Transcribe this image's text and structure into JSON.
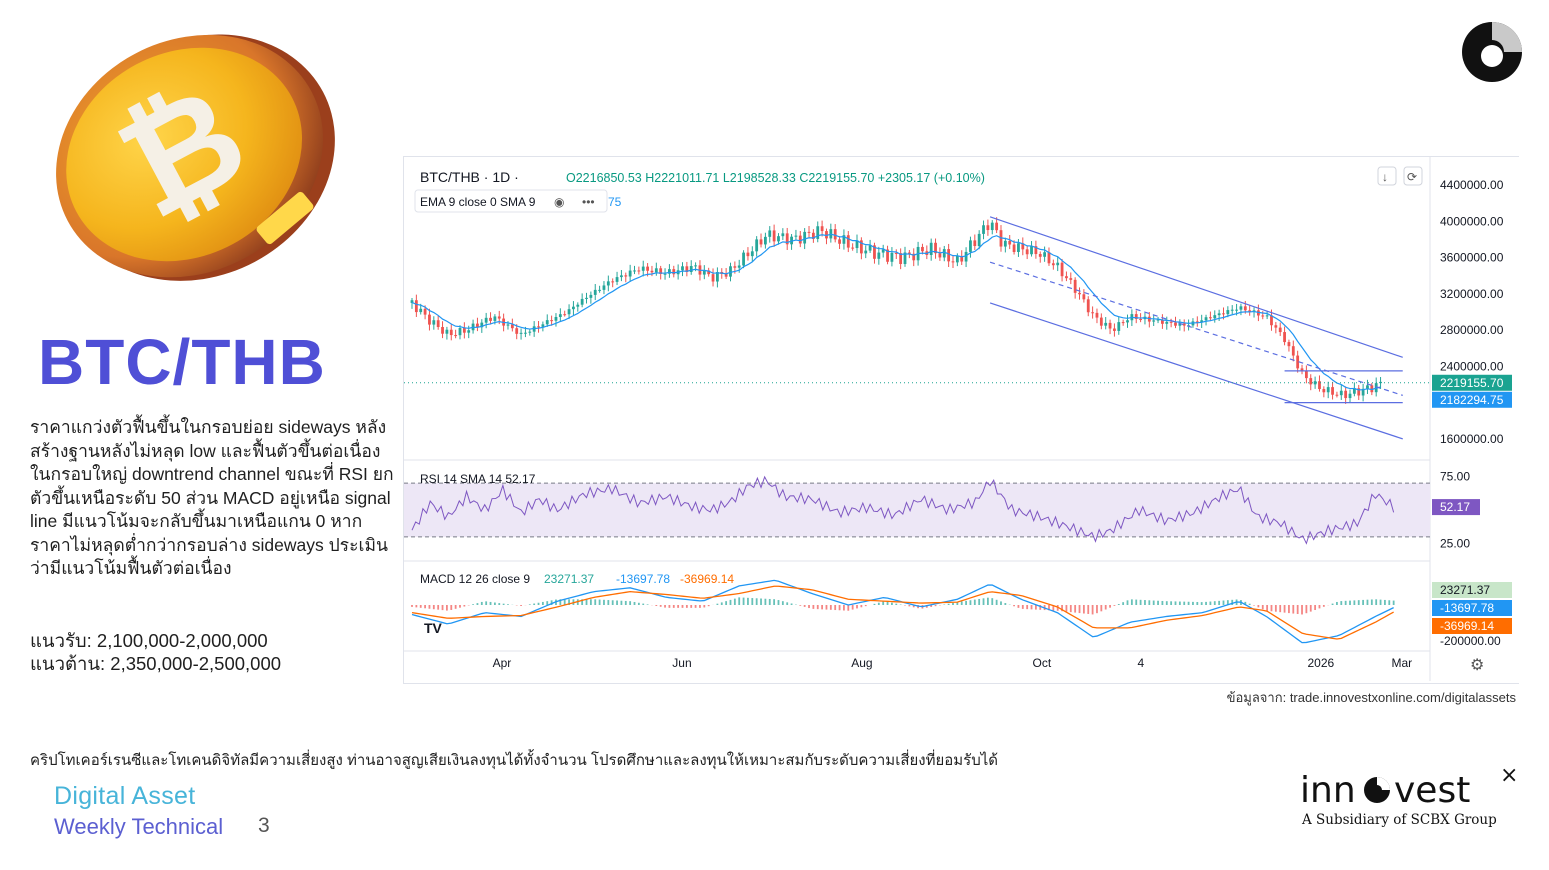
{
  "header": {
    "title": "BTC/THB"
  },
  "analysis": {
    "paragraph": "ราคาแกว่งตัวฟื้นขึ้นในกรอบย่อย sideways หลังสร้างฐานหลังไม่หลุด low และฟื้นตัวขึ้นต่อเนื่องในกรอบใหญ่ downtrend channel ขณะที่ RSI ยกตัวขึ้นเหนือระดับ 50 ส่วน MACD อยู่เหนือ signal line มีแนวโน้มจะกลับขึ้นมาเหนือแกน 0 หากราคาไม่หลุดต่ำกว่ากรอบล่าง sideways ประเมินว่ามีแนวโน้มฟื้นตัวต่อเนื่อง",
    "support": "แนวรับ: 2,100,000-2,000,000",
    "resistance": "แนวต้าน: 2,350,000-2,500,000"
  },
  "chart_header": {
    "symbol": "BTC/THB",
    "interval": "1D",
    "ohlc": "O2216850.53  H2221011.71  L2198528.33  C2219155.70  +2305.17 (+0.10%)",
    "indicator_label": "EMA 9 close 0 SMA 9",
    "indicator_value": "75",
    "more": "•••"
  },
  "chart_data": {
    "type": "candlestick",
    "symbol": "BTC/THB",
    "interval": "1D",
    "x_ticks": [
      "Apr",
      "Jun",
      "Aug",
      "Oct",
      "4",
      "2026",
      "Mar"
    ],
    "price_panel": {
      "yticks": [
        "4400000.00",
        "4000000.00",
        "3600000.00",
        "3200000.00",
        "2800000.00",
        "2400000.00",
        "1600000.00"
      ],
      "ylim": [
        1400000,
        4600000
      ],
      "last_close": {
        "label": "2219155.70",
        "value": 2219155.7,
        "color": "#1aa391"
      },
      "ema_label": {
        "label": "2182294.75",
        "value": 2182294.75,
        "color": "#2196f3"
      },
      "close_points": [
        [
          0,
          3100000
        ],
        [
          10,
          2900000
        ],
        [
          20,
          2750000
        ],
        [
          30,
          2800000
        ],
        [
          45,
          2950000
        ],
        [
          60,
          2750000
        ],
        [
          75,
          2900000
        ],
        [
          85,
          3000000
        ],
        [
          95,
          3150000
        ],
        [
          110,
          3350000
        ],
        [
          125,
          3480000
        ],
        [
          140,
          3430000
        ],
        [
          155,
          3500000
        ],
        [
          165,
          3380000
        ],
        [
          175,
          3450000
        ],
        [
          185,
          3650000
        ],
        [
          195,
          3850000
        ],
        [
          210,
          3800000
        ],
        [
          225,
          3900000
        ],
        [
          240,
          3750000
        ],
        [
          255,
          3650000
        ],
        [
          270,
          3600000
        ],
        [
          285,
          3700000
        ],
        [
          300,
          3550000
        ],
        [
          310,
          3800000
        ],
        [
          318,
          4000000
        ],
        [
          325,
          3750000
        ],
        [
          335,
          3700000
        ],
        [
          345,
          3650000
        ],
        [
          355,
          3500000
        ],
        [
          365,
          3250000
        ],
        [
          375,
          2950000
        ],
        [
          385,
          2800000
        ],
        [
          395,
          2950000
        ],
        [
          410,
          2900000
        ],
        [
          425,
          2850000
        ],
        [
          440,
          2950000
        ],
        [
          455,
          3050000
        ],
        [
          470,
          2950000
        ],
        [
          480,
          2700000
        ],
        [
          490,
          2300000
        ],
        [
          500,
          2150000
        ],
        [
          512,
          2080000
        ],
        [
          525,
          2150000
        ],
        [
          535,
          2219155.7
        ]
      ],
      "channel_upper": [
        [
          318,
          4050000
        ],
        [
          545,
          2500000
        ]
      ],
      "channel_lower": [
        [
          318,
          3100000
        ],
        [
          545,
          1600000
        ]
      ],
      "channel_mid": [
        [
          318,
          3550000
        ],
        [
          545,
          2080000
        ]
      ],
      "sideways_top": 2350000,
      "sideways_bottom": 2000000
    },
    "rsi_panel": {
      "label": "RSI 14 SMA 14",
      "value_label": "52.17",
      "value": 52.17,
      "yticks": [
        "75.00",
        "25.00"
      ],
      "upper_band": 70,
      "lower_band": 30,
      "points": [
        [
          0,
          35
        ],
        [
          10,
          55
        ],
        [
          20,
          45
        ],
        [
          30,
          60
        ],
        [
          40,
          50
        ],
        [
          50,
          65
        ],
        [
          60,
          48
        ],
        [
          70,
          58
        ],
        [
          80,
          50
        ],
        [
          95,
          62
        ],
        [
          110,
          66
        ],
        [
          125,
          55
        ],
        [
          140,
          60
        ],
        [
          155,
          52
        ],
        [
          165,
          50
        ],
        [
          175,
          56
        ],
        [
          185,
          68
        ],
        [
          195,
          72
        ],
        [
          205,
          60
        ],
        [
          220,
          58
        ],
        [
          235,
          48
        ],
        [
          250,
          52
        ],
        [
          265,
          46
        ],
        [
          280,
          58
        ],
        [
          295,
          50
        ],
        [
          310,
          56
        ],
        [
          318,
          72
        ],
        [
          330,
          50
        ],
        [
          345,
          45
        ],
        [
          360,
          38
        ],
        [
          375,
          30
        ],
        [
          385,
          35
        ],
        [
          400,
          50
        ],
        [
          415,
          42
        ],
        [
          430,
          48
        ],
        [
          445,
          60
        ],
        [
          455,
          66
        ],
        [
          465,
          45
        ],
        [
          478,
          40
        ],
        [
          490,
          28
        ],
        [
          505,
          35
        ],
        [
          520,
          40
        ],
        [
          530,
          62
        ],
        [
          540,
          52.17
        ]
      ]
    },
    "macd_panel": {
      "label": "MACD 12 26 close 9",
      "histogram_value": "23271.37",
      "macd_value": "-13697.78",
      "signal_value": "-36969.14",
      "value_labels": [
        "23271.37",
        "-13697.78",
        "-36969.14"
      ],
      "ytick": "-200000.00",
      "colors": {
        "histogram": "#26a69a",
        "macd": "#2196f3",
        "signal": "#ff6d00"
      },
      "macd_points": [
        [
          0,
          -50000
        ],
        [
          20,
          -100000
        ],
        [
          40,
          -40000
        ],
        [
          60,
          -60000
        ],
        [
          80,
          20000
        ],
        [
          100,
          70000
        ],
        [
          120,
          90000
        ],
        [
          140,
          40000
        ],
        [
          160,
          20000
        ],
        [
          180,
          100000
        ],
        [
          200,
          130000
        ],
        [
          220,
          60000
        ],
        [
          240,
          0
        ],
        [
          260,
          40000
        ],
        [
          280,
          -10000
        ],
        [
          300,
          30000
        ],
        [
          318,
          110000
        ],
        [
          335,
          30000
        ],
        [
          355,
          -40000
        ],
        [
          375,
          -170000
        ],
        [
          395,
          -90000
        ],
        [
          415,
          -60000
        ],
        [
          435,
          -40000
        ],
        [
          455,
          20000
        ],
        [
          470,
          -60000
        ],
        [
          490,
          -200000
        ],
        [
          510,
          -160000
        ],
        [
          530,
          -60000
        ],
        [
          540,
          -13697.78
        ]
      ],
      "signal_points": [
        [
          0,
          -40000
        ],
        [
          20,
          -70000
        ],
        [
          40,
          -60000
        ],
        [
          60,
          -55000
        ],
        [
          80,
          -10000
        ],
        [
          100,
          40000
        ],
        [
          120,
          70000
        ],
        [
          140,
          55000
        ],
        [
          160,
          35000
        ],
        [
          180,
          60000
        ],
        [
          200,
          100000
        ],
        [
          220,
          80000
        ],
        [
          240,
          30000
        ],
        [
          260,
          20000
        ],
        [
          280,
          10000
        ],
        [
          300,
          15000
        ],
        [
          318,
          70000
        ],
        [
          335,
          50000
        ],
        [
          355,
          -10000
        ],
        [
          375,
          -120000
        ],
        [
          395,
          -120000
        ],
        [
          415,
          -80000
        ],
        [
          435,
          -55000
        ],
        [
          455,
          -10000
        ],
        [
          470,
          -30000
        ],
        [
          490,
          -150000
        ],
        [
          510,
          -180000
        ],
        [
          530,
          -90000
        ],
        [
          540,
          -36969.14
        ]
      ]
    }
  },
  "source": "ข้อมูลจาก: trade.innovestxonline.com/digitalassets",
  "disclaimer": "คริปโทเคอร์เรนซีและโทเคนดิจิทัลมีความเสี่ยงสูง ท่านอาจสูญเสียเงินลงทุนได้ทั้งจำนวน โปรดศึกษาและลงทุนให้เหมาะสมกับระดับความเสี่ยงที่ยอมรับได้",
  "footer": {
    "series": "Digital Asset",
    "subseries": "Weekly Technical",
    "page": "3"
  },
  "brand": {
    "name_left": "inn",
    "name_right": "vest",
    "tagline": "A Subsidiary of SCBX Group"
  },
  "colors": {
    "title": "#4f4fd6",
    "series": "#47b4d9",
    "subseries": "#5b5fd1",
    "up": "#26a69a",
    "down": "#ef5350",
    "ema": "#2196f3",
    "channel": "#5b6ee1",
    "rsi": "#7e57c2"
  }
}
